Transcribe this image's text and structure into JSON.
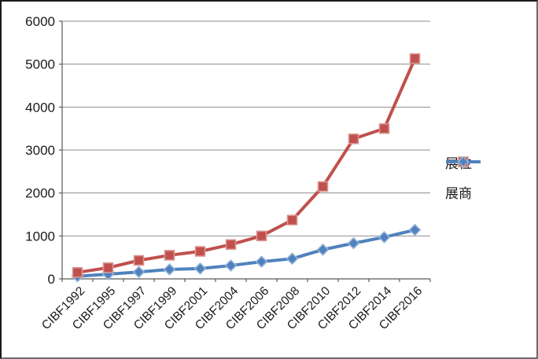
{
  "chart_data": {
    "type": "line",
    "title": "",
    "xlabel": "",
    "ylabel": "",
    "categories": [
      "CIBF1992",
      "CIBF1995",
      "CIBF1997",
      "CIBF1999",
      "CIBF2001",
      "CIBF2004",
      "CIBF2006",
      "CIBF2008",
      "CIBF2010",
      "CIBF2012",
      "CIBF2014",
      "CIBF2016"
    ],
    "series": [
      {
        "name": "展商",
        "marker": "diamond",
        "color": "#4F81BD",
        "marker_border": "#95B3D7",
        "values": [
          60,
          110,
          160,
          220,
          240,
          310,
          400,
          470,
          680,
          830,
          970,
          1140
        ]
      },
      {
        "name": "展位",
        "marker": "square",
        "color": "#C0504D",
        "marker_border": "#D99694",
        "values": [
          150,
          260,
          430,
          550,
          640,
          800,
          1000,
          1370,
          2150,
          3260,
          3500,
          5130
        ]
      }
    ],
    "legend_order": [
      "展位",
      "展商"
    ],
    "legend_position": "right",
    "grid": true,
    "ylim": [
      0,
      6000
    ],
    "ytick_step": 1000,
    "yticks": [
      "0",
      "1000",
      "2000",
      "3000",
      "4000",
      "5000",
      "6000"
    ]
  },
  "colors": {
    "background": "#ffffff",
    "gridline": "#8e8e8e",
    "axis": "#595959",
    "text": "#1a1a1a",
    "frame_border": "#1a1a1a"
  },
  "legend": {
    "items": [
      {
        "label": "展位",
        "series_color": "#C0504D",
        "marker": "square"
      },
      {
        "label": "展商",
        "series_color": "#4F81BD",
        "marker": "diamond"
      }
    ]
  }
}
